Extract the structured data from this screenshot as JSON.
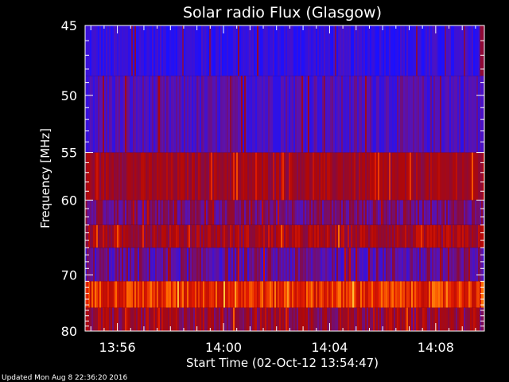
{
  "chart_data": {
    "type": "heatmap",
    "title": "Solar radio Flux (Glasgow)",
    "xlabel": "Start Time (02-Oct-12 13:54:47)",
    "ylabel": "Frequency [MHz]",
    "x_start": "13:54:47",
    "x_end": "14:09:50",
    "x_ticks": [
      "13:56",
      "14:00",
      "14:04",
      "14:08"
    ],
    "ylim": [
      45,
      80
    ],
    "y_ticks": [
      "45",
      "50",
      "55",
      "60",
      "70",
      "80"
    ],
    "y_scale": "reciprocal",
    "colormap": [
      "#1a10ff",
      "#5a12b0",
      "#8a0a3a",
      "#b00808",
      "#e01a00",
      "#ff6a00",
      "#ffd040"
    ],
    "bands": [
      {
        "f_low": 45.0,
        "f_high": 48.5,
        "base": 0.06,
        "spread": 0.08
      },
      {
        "f_low": 48.5,
        "f_high": 55.0,
        "base": 0.14,
        "spread": 0.1
      },
      {
        "f_low": 55.0,
        "f_high": 60.0,
        "base": 0.42,
        "spread": 0.12
      },
      {
        "f_low": 60.0,
        "f_high": 63.0,
        "base": 0.26,
        "spread": 0.12
      },
      {
        "f_low": 63.0,
        "f_high": 66.0,
        "base": 0.44,
        "spread": 0.16
      },
      {
        "f_low": 66.0,
        "f_high": 71.0,
        "base": 0.2,
        "spread": 0.14
      },
      {
        "f_low": 71.0,
        "f_high": 75.5,
        "base": 0.7,
        "spread": 0.16
      },
      {
        "f_low": 75.5,
        "f_high": 80.0,
        "base": 0.4,
        "spread": 0.18
      }
    ]
  },
  "footer": {
    "updated_text": "Updated Mon Aug  8 22:36:20 2016"
  }
}
